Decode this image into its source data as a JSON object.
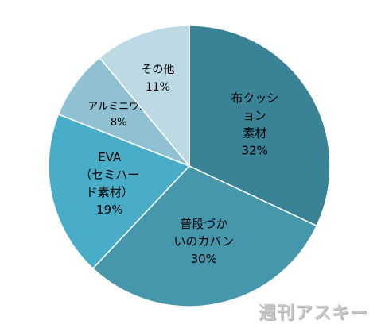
{
  "chart_data": {
    "type": "pie",
    "slices": [
      {
        "label_lines": [
          "布クッシ",
          "ョン",
          "素材"
        ],
        "value": 32,
        "value_label": "32%",
        "color": "#3a8296",
        "text_color": "#000000"
      },
      {
        "label_lines": [
          "普段づか",
          "いのカバン"
        ],
        "value": 30,
        "value_label": "30%",
        "color": "#4697ac",
        "text_color": "#000000"
      },
      {
        "label_lines": [
          "EVA",
          "（セミハー",
          "ド素材）"
        ],
        "value": 19,
        "value_label": "19%",
        "color": "#4aadc8",
        "text_color": "#000000"
      },
      {
        "label_lines": [
          "アルミニウム"
        ],
        "value": 8,
        "value_label": "8%",
        "color": "#8fc1d2",
        "text_color": "#000000"
      },
      {
        "label_lines": [
          "その他"
        ],
        "value": 11,
        "value_label": "11%",
        "color": "#bcd9e4",
        "text_color": "#000000"
      }
    ]
  },
  "watermark": "週刊アスキー"
}
